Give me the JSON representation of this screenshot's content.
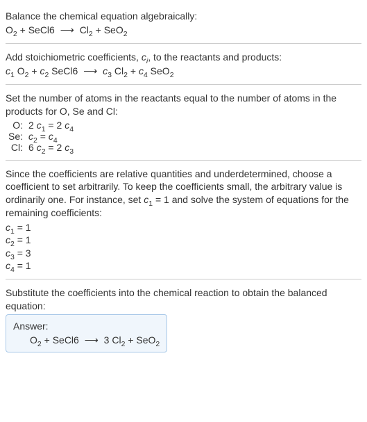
{
  "intro": {
    "line1": "Balance the chemical equation algebraically:"
  },
  "eq1": {
    "o2": "O",
    "o2_sub": "2",
    "plus1": " + SeCl6 ",
    "arrow": "⟶",
    "cl2": "Cl",
    "cl2_sub": "2",
    "plus2": " + SeO",
    "seo2_sub": "2"
  },
  "stoich": {
    "text1": "Add stoichiometric coefficients, ",
    "ci": "c",
    "ci_sub": "i",
    "text2": ", to the reactants and products:"
  },
  "eq2": {
    "c1": "c",
    "c1_sub": "1",
    "o2": " O",
    "o2_sub": "2",
    "plus1": " + ",
    "c2": "c",
    "c2_sub": "2",
    "secl6": " SeCl6 ",
    "arrow": "⟶",
    "c3": " c",
    "c3_sub": "3",
    "cl2": " Cl",
    "cl2_sub": "2",
    "plus2": " + ",
    "c4": "c",
    "c4_sub": "4",
    "seo2": " SeO",
    "seo2_sub": "2"
  },
  "constraint_intro": "Set the number of atoms in the reactants equal to the number of atoms in the products for O, Se and Cl:",
  "constraints": {
    "o_label": "O:",
    "o_lhs_2": "2 ",
    "o_c1": "c",
    "o_c1_sub": "1",
    "o_eq": " = 2 ",
    "o_c4": "c",
    "o_c4_sub": "4",
    "se_label": "Se:",
    "se_c2": "c",
    "se_c2_sub": "2",
    "se_eq": " = ",
    "se_c4": "c",
    "se_c4_sub": "4",
    "cl_label": "Cl:",
    "cl_6": "6 ",
    "cl_c2": "c",
    "cl_c2_sub": "2",
    "cl_eq": " = 2 ",
    "cl_c3": "c",
    "cl_c3_sub": "3"
  },
  "since": {
    "text1": "Since the coefficients are relative quantities and underdetermined, choose a coefficient to set arbitrarily. To keep the coefficients small, the arbitrary value is ordinarily one. For instance, set ",
    "c1": "c",
    "c1_sub": "1",
    "text2": " = 1 and solve the system of equations for the remaining coefficients:"
  },
  "coefs": {
    "c1_var": "c",
    "c1_sub": "1",
    "c1_val": " = 1",
    "c2_var": "c",
    "c2_sub": "2",
    "c2_val": " = 1",
    "c3_var": "c",
    "c3_sub": "3",
    "c3_val": " = 3",
    "c4_var": "c",
    "c4_sub": "4",
    "c4_val": " = 1"
  },
  "substitute": "Substitute the coefficients into the chemical reaction to obtain the balanced equation:",
  "answer": {
    "label": "Answer:",
    "o2": "O",
    "o2_sub": "2",
    "plus1": " + SeCl6 ",
    "arrow": "⟶",
    "three": " 3 Cl",
    "cl2_sub": "2",
    "plus2": " + SeO",
    "seo2_sub": "2"
  }
}
